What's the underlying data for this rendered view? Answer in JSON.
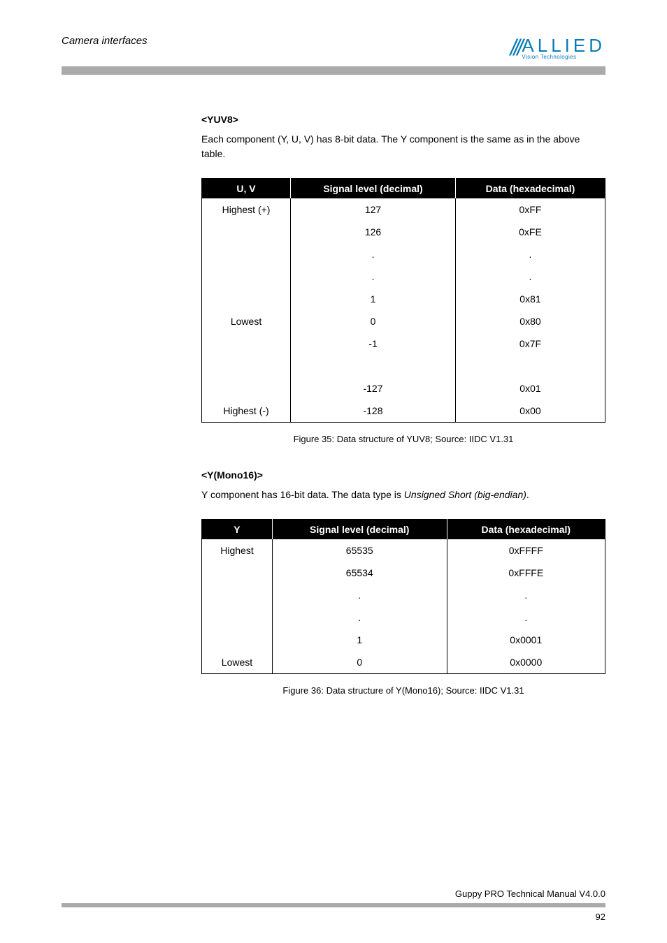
{
  "header": {
    "title": "Camera interfaces",
    "logo_top": "ALLIED",
    "logo_bottom": "Vision Technologies"
  },
  "section1": {
    "heading": "<YUV8>",
    "paragraph": "Each component (Y, U, V) has 8-bit data. The Y component is the same as in the above table."
  },
  "table1": {
    "columns": [
      "U, V",
      "Signal level (decimal)",
      "Data (hexadecimal)"
    ],
    "rows": [
      [
        "Highest (+)",
        "127",
        "0xFF"
      ],
      [
        "",
        "126",
        "0xFE"
      ],
      [
        "",
        ".",
        "."
      ],
      [
        "",
        ".",
        "."
      ],
      [
        "",
        "1",
        "0x81"
      ],
      [
        "Lowest",
        "0",
        "0x80"
      ],
      [
        "",
        "-1",
        "0x7F"
      ],
      [
        "",
        "",
        ""
      ],
      [
        "",
        "",
        ""
      ],
      [
        "",
        "-127",
        "0x01"
      ],
      [
        "Highest (-)",
        "-128",
        "0x00"
      ]
    ],
    "caption": "Figure 35: Data structure of YUV8; Source: IIDC V1.31"
  },
  "section2": {
    "heading": "<Y(Mono16)>",
    "para_prefix": "Y component has 16-bit data. The data type is ",
    "para_italic": "Unsigned Short (big-endian)",
    "para_suffix": "."
  },
  "table2": {
    "columns": [
      "Y",
      "Signal level (decimal)",
      "Data (hexadecimal)"
    ],
    "rows": [
      [
        "Highest",
        "65535",
        "0xFFFF"
      ],
      [
        "",
        "65534",
        "0xFFFE"
      ],
      [
        "",
        ".",
        "."
      ],
      [
        "",
        ".",
        "."
      ],
      [
        "",
        "1",
        "0x0001"
      ],
      [
        "Lowest",
        "0",
        "0x0000"
      ]
    ],
    "caption": "Figure 36: Data structure of Y(Mono16); Source: IIDC V1.31"
  },
  "footer": {
    "text": "Guppy PRO Technical Manual V4.0.0",
    "page": "92"
  },
  "colors": {
    "gray_bar": "#aaaaaa",
    "header_bg": "#000000",
    "header_fg": "#ffffff",
    "logo_color": "#0a7bb8"
  }
}
